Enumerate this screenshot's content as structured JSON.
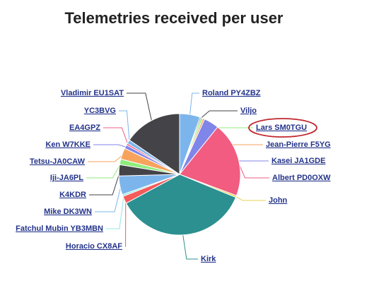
{
  "chart_data": {
    "type": "pie",
    "title": "Telemetries received per user",
    "categories": [
      "Roland PY4ZBZ",
      "Viljo",
      "Lars SM0TGU",
      "Jean-Pierre F5YG",
      "Kasei JA1GDE",
      "Albert PD0OXW",
      "John",
      "Kirk",
      "Horacio CX8AF",
      "Fatchul Mubin YB3MBN",
      "Mike DK3WN",
      "K4KDR",
      "Iji-JA6PL",
      "Tetsu-JA0CAW",
      "Ken W7KKE",
      "EA4GPZ",
      "YC3BVG",
      "Vladimir EU1SAT"
    ],
    "values": [
      5.5,
      0.3,
      0.5,
      0.5,
      4,
      20,
      0.5,
      36,
      2,
      0.5,
      5,
      3,
      1.5,
      3,
      1,
      0.5,
      1,
      15.5
    ],
    "colors": [
      "#7cb5ec",
      "#434348",
      "#90ed7d",
      "#f7a35c",
      "#8085e9",
      "#f15c80",
      "#e4d354",
      "#2b908f",
      "#f45b5b",
      "#91e8e1",
      "#7cb5ec",
      "#434348",
      "#90ed7d",
      "#f7a35c",
      "#8085e9",
      "#f15c80",
      "#7cb5ec",
      "#434348"
    ]
  }
}
